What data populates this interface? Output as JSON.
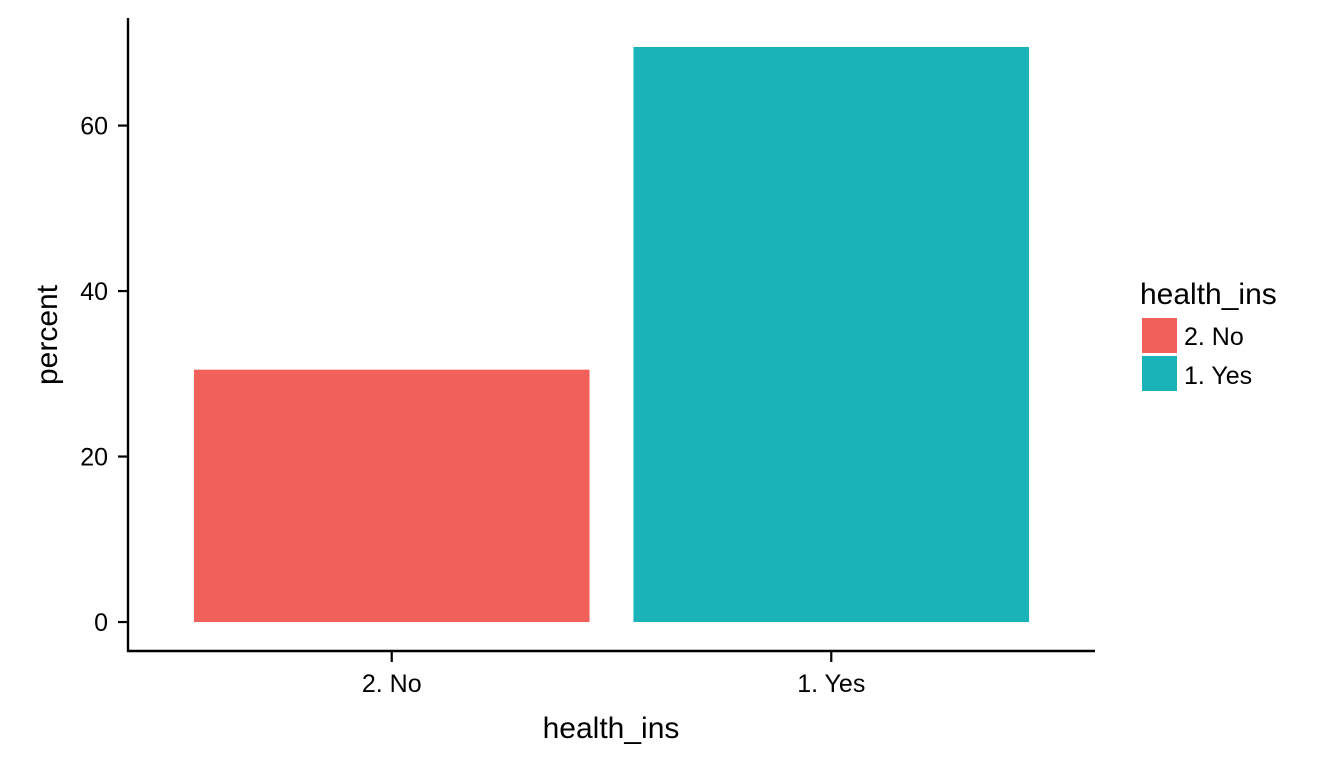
{
  "chart_data": {
    "type": "bar",
    "title": "",
    "xlabel": "health_ins",
    "ylabel": "percent",
    "categories": [
      "2. No",
      "1. Yes"
    ],
    "values": [
      30.5,
      69.5
    ],
    "ylim": [
      -3.5,
      73
    ],
    "yticks": [
      0,
      20,
      40,
      60
    ],
    "colors": [
      "#F2605B",
      "#1AB3B8"
    ],
    "grid": false,
    "legend": {
      "title": "health_ins",
      "position": "right",
      "entries": [
        "2. No",
        "1. Yes"
      ]
    }
  }
}
